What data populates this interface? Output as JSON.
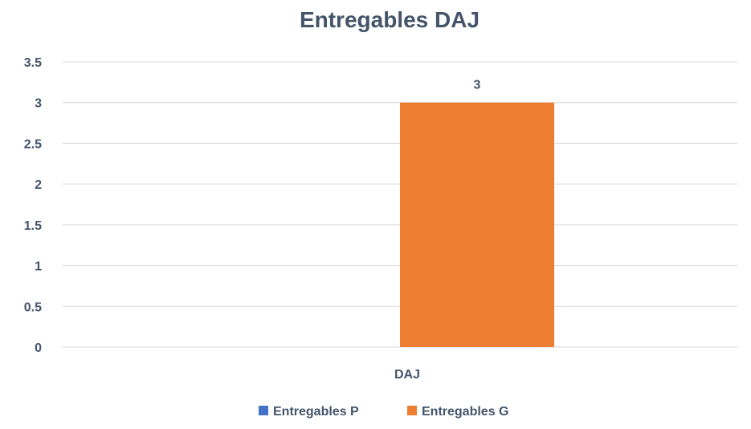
{
  "chart_data": {
    "type": "bar",
    "title": "Entregables DAJ",
    "categories": [
      "DAJ"
    ],
    "series": [
      {
        "name": "Entregables P",
        "color": "#4472C4",
        "values": [
          0
        ]
      },
      {
        "name": "Entregables G",
        "color": "#ED7D31",
        "values": [
          3
        ]
      }
    ],
    "data_labels": [
      null,
      "3"
    ],
    "ylim": [
      0,
      3.5
    ],
    "yticks": [
      "0",
      "0.5",
      "1",
      "1.5",
      "2",
      "2.5",
      "3",
      "3.5"
    ],
    "grid": true,
    "legend_position": "bottom",
    "text_color": "#44546A",
    "grid_color": "#D9D9D9"
  }
}
